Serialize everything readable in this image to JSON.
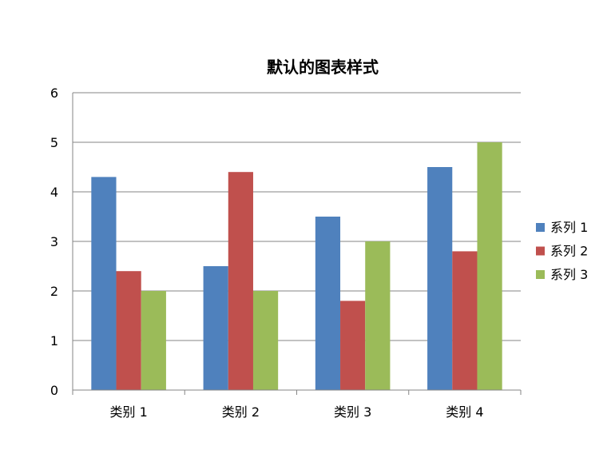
{
  "chart_data": {
    "type": "bar",
    "title": "默认的图表样式",
    "xlabel": "",
    "ylabel": "",
    "categories": [
      "类别 1",
      "类别 2",
      "类别 3",
      "类别 4"
    ],
    "series": [
      {
        "name": "系列 1",
        "values": [
          4.3,
          2.5,
          3.5,
          4.5
        ]
      },
      {
        "name": "系列 2",
        "values": [
          2.4,
          4.4,
          1.8,
          2.8
        ]
      },
      {
        "name": "系列 3",
        "values": [
          2.0,
          2.0,
          3.0,
          5.0
        ]
      }
    ],
    "ylim": [
      0,
      6
    ],
    "yticks": [
      "0",
      "1",
      "2",
      "3",
      "4",
      "5",
      "6"
    ],
    "grid": true,
    "legend": "right",
    "colors": [
      "#4F81BD",
      "#C0504D",
      "#9BBB59"
    ],
    "axis_color": "#868686",
    "grid_color": "#868686"
  }
}
